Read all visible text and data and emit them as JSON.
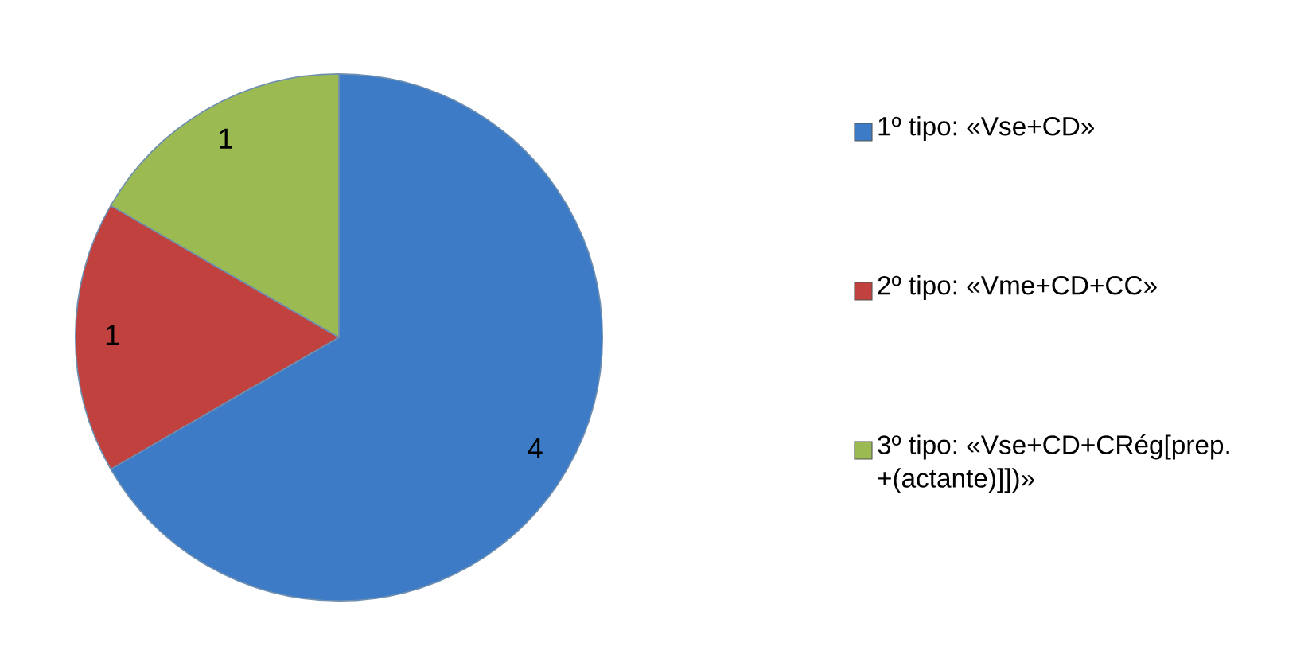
{
  "chart_data": {
    "type": "pie",
    "categories": [
      "1º tipo: «Vse+CD»",
      "2º tipo: «Vme+CD+CC»",
      "3º tipo: «Vse+CD+CRég[prep. +(actante)]])»"
    ],
    "values": [
      4,
      1,
      1
    ],
    "colors": [
      "#3d7bc6",
      "#c0413d",
      "#9bbb52"
    ],
    "data_labels": true,
    "legend": "right"
  }
}
